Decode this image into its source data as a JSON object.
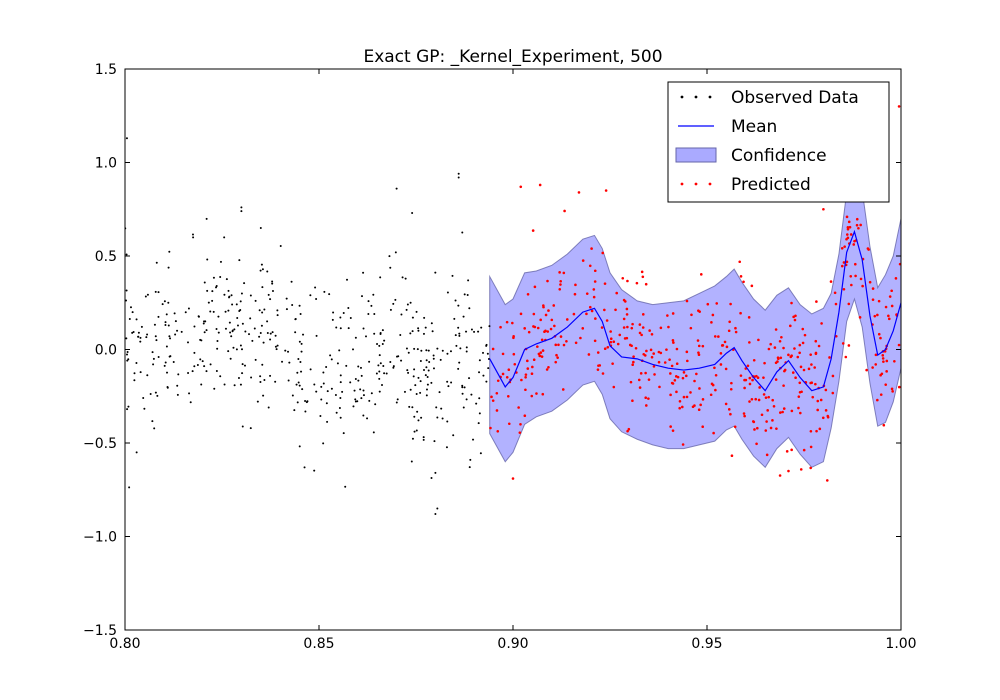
{
  "chart_data": {
    "type": "scatter",
    "title": "Exact GP: _Kernel_Experiment, 500",
    "xlabel": "",
    "ylabel": "",
    "xlim": [
      0.8,
      1.0
    ],
    "ylim": [
      -1.5,
      1.5
    ],
    "x_ticks": [
      0.8,
      0.85,
      0.9,
      0.95,
      1.0
    ],
    "x_tick_labels": [
      "0.80",
      "0.85",
      "0.90",
      "0.95",
      "1.00"
    ],
    "y_ticks": [
      -1.5,
      -1.0,
      -0.5,
      0.0,
      0.5,
      1.0,
      1.5
    ],
    "y_tick_labels": [
      "−1.5",
      "−1.0",
      "−0.5",
      "0.0",
      "0.5",
      "1.0",
      "1.5"
    ],
    "grid": false,
    "legend_position": "top-right",
    "legend": [
      {
        "label": "Observed Data",
        "kind": "points",
        "color": "#000000"
      },
      {
        "label": "Mean",
        "kind": "line",
        "color": "#0000ff"
      },
      {
        "label": "Confidence",
        "kind": "band",
        "color": "#aaaaff"
      },
      {
        "label": "Predicted",
        "kind": "points",
        "color": "#ff0000"
      }
    ],
    "series": [
      {
        "name": "Observed Data",
        "style": "points",
        "color": "#000000",
        "x_range": [
          0.8,
          0.894
        ],
        "count": 500,
        "trend_x": [
          0.8,
          0.805,
          0.81,
          0.815,
          0.82,
          0.825,
          0.83,
          0.835,
          0.84,
          0.845,
          0.85,
          0.855,
          0.86,
          0.865,
          0.87,
          0.875,
          0.88,
          0.885,
          0.89,
          0.894
        ],
        "trend_y": [
          0.05,
          -0.05,
          0.0,
          0.05,
          0.12,
          0.1,
          0.12,
          0.1,
          0.08,
          -0.1,
          -0.08,
          -0.15,
          0.0,
          -0.05,
          0.05,
          -0.1,
          -0.2,
          0.05,
          -0.1,
          0.0
        ],
        "spread": 0.22,
        "outliers": [
          {
            "x": 0.8005,
            "y": 1.13
          },
          {
            "x": 0.83,
            "y": 0.76
          },
          {
            "x": 0.83,
            "y": 0.74
          },
          {
            "x": 0.835,
            "y": 0.65
          },
          {
            "x": 0.87,
            "y": 0.86
          },
          {
            "x": 0.874,
            "y": 0.73
          },
          {
            "x": 0.886,
            "y": 0.94
          },
          {
            "x": 0.886,
            "y": 0.92
          },
          {
            "x": 0.88,
            "y": -0.66
          },
          {
            "x": 0.8805,
            "y": -0.85
          },
          {
            "x": 0.88,
            "y": -0.88
          },
          {
            "x": 0.803,
            "y": -0.55
          },
          {
            "x": 0.889,
            "y": -0.59
          }
        ]
      },
      {
        "name": "Predicted",
        "style": "points",
        "color": "#ff0000",
        "x_range": [
          0.894,
          1.0
        ],
        "count": 500,
        "spread": 0.2,
        "outliers": [
          {
            "x": 0.902,
            "y": 0.87
          },
          {
            "x": 0.907,
            "y": 0.88
          },
          {
            "x": 0.917,
            "y": 0.84
          },
          {
            "x": 0.924,
            "y": 0.85
          },
          {
            "x": 0.98,
            "y": 0.75
          },
          {
            "x": 0.993,
            "y": 0.8
          },
          {
            "x": 0.9995,
            "y": 1.3
          },
          {
            "x": 0.981,
            "y": -0.7
          },
          {
            "x": 0.971,
            "y": -0.65
          },
          {
            "x": 0.9,
            "y": -0.69
          }
        ]
      },
      {
        "name": "Mean",
        "style": "line",
        "color": "#0000ff",
        "x": [
          0.894,
          0.898,
          0.9,
          0.903,
          0.906,
          0.91,
          0.914,
          0.918,
          0.921,
          0.923,
          0.925,
          0.928,
          0.932,
          0.936,
          0.94,
          0.944,
          0.948,
          0.952,
          0.955,
          0.957,
          0.959,
          0.962,
          0.965,
          0.968,
          0.971,
          0.974,
          0.977,
          0.98,
          0.982,
          0.984,
          0.986,
          0.988,
          0.99,
          0.992,
          0.994,
          0.996,
          0.998,
          1.0
        ],
        "y": [
          -0.05,
          -0.2,
          -0.15,
          0.0,
          0.03,
          0.06,
          0.12,
          0.2,
          0.22,
          0.15,
          0.02,
          -0.04,
          -0.05,
          -0.08,
          -0.1,
          -0.11,
          -0.1,
          -0.08,
          -0.02,
          0.01,
          -0.06,
          -0.15,
          -0.22,
          -0.12,
          -0.06,
          -0.15,
          -0.22,
          -0.2,
          -0.05,
          0.2,
          0.52,
          0.63,
          0.48,
          0.18,
          -0.03,
          0.0,
          0.1,
          0.25
        ]
      },
      {
        "name": "Confidence",
        "style": "band",
        "color": "#aaaaff",
        "x": [
          0.894,
          0.898,
          0.9,
          0.903,
          0.906,
          0.91,
          0.914,
          0.918,
          0.921,
          0.923,
          0.925,
          0.928,
          0.932,
          0.936,
          0.94,
          0.944,
          0.948,
          0.952,
          0.955,
          0.957,
          0.959,
          0.962,
          0.965,
          0.968,
          0.971,
          0.974,
          0.977,
          0.98,
          0.982,
          0.984,
          0.986,
          0.988,
          0.99,
          0.992,
          0.994,
          0.996,
          0.998,
          1.0
        ],
        "lower": [
          -0.45,
          -0.6,
          -0.55,
          -0.4,
          -0.36,
          -0.33,
          -0.27,
          -0.19,
          -0.17,
          -0.24,
          -0.37,
          -0.44,
          -0.48,
          -0.51,
          -0.53,
          -0.53,
          -0.51,
          -0.49,
          -0.43,
          -0.41,
          -0.48,
          -0.57,
          -0.63,
          -0.53,
          -0.47,
          -0.56,
          -0.63,
          -0.6,
          -0.42,
          -0.17,
          0.15,
          0.27,
          0.12,
          -0.18,
          -0.41,
          -0.39,
          -0.28,
          -0.1
        ],
        "upper": [
          0.39,
          0.24,
          0.27,
          0.41,
          0.42,
          0.45,
          0.51,
          0.59,
          0.61,
          0.54,
          0.41,
          0.32,
          0.26,
          0.24,
          0.25,
          0.26,
          0.3,
          0.34,
          0.39,
          0.43,
          0.36,
          0.27,
          0.21,
          0.29,
          0.33,
          0.24,
          0.19,
          0.22,
          0.3,
          0.51,
          0.84,
          0.95,
          0.85,
          0.55,
          0.33,
          0.4,
          0.5,
          0.7
        ]
      }
    ]
  }
}
